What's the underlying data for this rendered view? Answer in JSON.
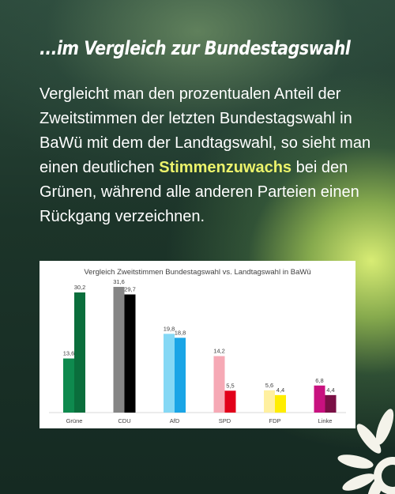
{
  "heading": "...im Vergleich zur Bundestagswahl",
  "body": {
    "part1": "Vergleicht man den prozentualen Anteil der Zweitstimmen der letzten Bundestagswahl in BaWü mit dem der Landtagswahl, so sieht man einen deutlichen ",
    "highlight": "Stimmenzuwachs",
    "part2": " bei den Grünen, während alle anderen Parteien einen Rückgang verzeichnen."
  },
  "colors": {
    "highlight": "#ecf36b",
    "background_dark": "#1c3429",
    "background_glow": "#e2f678"
  },
  "chart_data": {
    "type": "bar",
    "title": "Vergleich Zweitstimmen Bundestagswahl vs. Landtagswahl in BaWü",
    "categories": [
      "Grüne",
      "CDU",
      "AfD",
      "SPD",
      "FDP",
      "Linke"
    ],
    "series": [
      {
        "values": [
          13.6,
          31.6,
          19.8,
          14.2,
          5.6,
          6.8
        ],
        "labels": [
          "13,6",
          "31,6",
          "19,8",
          "14,2",
          "5,6",
          "6,8"
        ]
      },
      {
        "values": [
          30.2,
          29.7,
          18.8,
          5.5,
          4.4,
          4.4
        ],
        "labels": [
          "30,2",
          "29,7",
          "18,8",
          "5,5",
          "4,4",
          "4,4"
        ]
      }
    ],
    "colors": [
      [
        "#0e8a4e",
        "#0a6e3c"
      ],
      [
        "#858585",
        "#000000"
      ],
      [
        "#85d8f5",
        "#1aa5e6"
      ],
      [
        "#f6a9b5",
        "#e2001a"
      ],
      [
        "#fff0a0",
        "#ffed00"
      ],
      [
        "#c8117f",
        "#7a0f45"
      ]
    ],
    "ylim": [
      0,
      35
    ],
    "grid": false,
    "legend": "none"
  }
}
